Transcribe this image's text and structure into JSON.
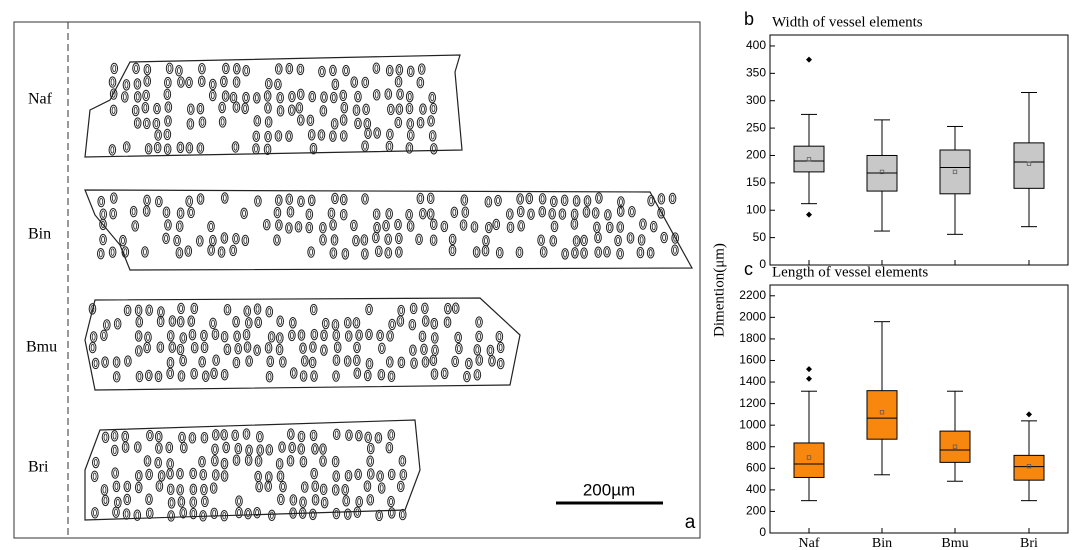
{
  "diagram": {
    "panel_label": "a",
    "rows": [
      "Naf",
      "Bin",
      "Bmu",
      "Bri"
    ],
    "scale_bar": "200µm"
  },
  "chart_data": [
    {
      "type": "box",
      "panel_label": "b",
      "title": "Width of vessel elements",
      "y_label": "Dimention(μm)",
      "categories": [
        null,
        null,
        null,
        null
      ],
      "color": "#c8c8c8",
      "ylim": [
        0,
        420
      ],
      "yticks": [
        0,
        50,
        100,
        150,
        200,
        250,
        300,
        350,
        400
      ],
      "boxes": [
        {
          "whisker_low": 112,
          "q1": 170,
          "median": 190,
          "q3": 217,
          "whisker_high": 275,
          "mean": 193,
          "outliers": [
            92,
            375
          ]
        },
        {
          "whisker_low": 62,
          "q1": 135,
          "median": 168,
          "q3": 200,
          "whisker_high": 265,
          "mean": 170,
          "outliers": []
        },
        {
          "whisker_low": 56,
          "q1": 130,
          "median": 178,
          "q3": 210,
          "whisker_high": 253,
          "mean": 170,
          "outliers": []
        },
        {
          "whisker_low": 70,
          "q1": 140,
          "median": 188,
          "q3": 223,
          "whisker_high": 315,
          "mean": 185,
          "outliers": []
        }
      ]
    },
    {
      "type": "box",
      "panel_label": "c",
      "title": "Length of vessel elements",
      "categories": [
        "Naf",
        "Bin",
        "Bmu",
        "Bri"
      ],
      "color": "#f7870f",
      "ylim": [
        0,
        2300
      ],
      "yticks": [
        0,
        200,
        400,
        600,
        800,
        1000,
        1200,
        1400,
        1600,
        1800,
        2000,
        2200
      ],
      "boxes": [
        {
          "whisker_low": 300,
          "q1": 515,
          "median": 640,
          "q3": 835,
          "whisker_high": 1315,
          "mean": 700,
          "outliers": [
            1430,
            1520
          ]
        },
        {
          "whisker_low": 540,
          "q1": 870,
          "median": 1065,
          "q3": 1320,
          "whisker_high": 1960,
          "mean": 1120,
          "outliers": []
        },
        {
          "whisker_low": 480,
          "q1": 655,
          "median": 770,
          "q3": 945,
          "whisker_high": 1315,
          "mean": 800,
          "outliers": []
        },
        {
          "whisker_low": 300,
          "q1": 490,
          "median": 615,
          "q3": 720,
          "whisker_high": 1040,
          "mean": 620,
          "outliers": [
            1100
          ]
        }
      ]
    }
  ]
}
